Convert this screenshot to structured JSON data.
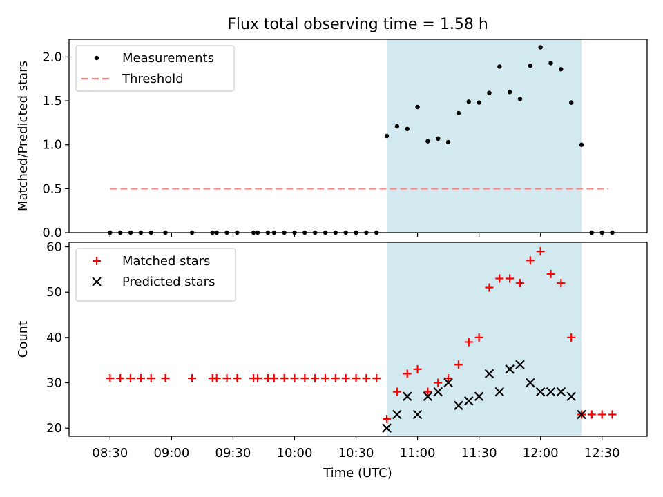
{
  "title": "Flux total observing time = 1.58 h",
  "xlabel": "Time (UTC)",
  "x_ticks": [
    "08:30",
    "09:00",
    "09:30",
    "10:00",
    "10:30",
    "11:00",
    "11:30",
    "12:00",
    "12:30"
  ],
  "chart_data": [
    {
      "type": "scatter",
      "ylabel": "Matched/Predicted stars",
      "ylim": [
        0,
        2.2
      ],
      "y_ticks": [
        "0.0",
        "0.5",
        "1.0",
        "1.5",
        "2.0"
      ],
      "legend_placement": "upper-left",
      "highlight_span": {
        "start": "10:45",
        "end": "12:20",
        "color": "#d3e9f0"
      },
      "series": [
        {
          "name": "Measurements",
          "marker": "dot",
          "color": "#000000",
          "points": [
            [
              "08:30",
              0
            ],
            [
              "08:35",
              0
            ],
            [
              "08:40",
              0
            ],
            [
              "08:45",
              0
            ],
            [
              "08:50",
              0
            ],
            [
              "08:57",
              0
            ],
            [
              "09:10",
              0
            ],
            [
              "09:20",
              0
            ],
            [
              "09:22",
              0
            ],
            [
              "09:27",
              0
            ],
            [
              "09:32",
              0
            ],
            [
              "09:40",
              0
            ],
            [
              "09:42",
              0
            ],
            [
              "09:47",
              0
            ],
            [
              "09:50",
              0
            ],
            [
              "09:55",
              0
            ],
            [
              "10:00",
              0
            ],
            [
              "10:05",
              0
            ],
            [
              "10:10",
              0
            ],
            [
              "10:15",
              0
            ],
            [
              "10:20",
              0
            ],
            [
              "10:25",
              0
            ],
            [
              "10:30",
              0
            ],
            [
              "10:35",
              0
            ],
            [
              "10:40",
              0
            ],
            [
              "10:45",
              1.1
            ],
            [
              "10:50",
              1.21
            ],
            [
              "10:55",
              1.18
            ],
            [
              "11:00",
              1.43
            ],
            [
              "11:05",
              1.04
            ],
            [
              "11:10",
              1.07
            ],
            [
              "11:15",
              1.03
            ],
            [
              "11:20",
              1.36
            ],
            [
              "11:25",
              1.49
            ],
            [
              "11:30",
              1.48
            ],
            [
              "11:35",
              1.59
            ],
            [
              "11:40",
              1.89
            ],
            [
              "11:45",
              1.6
            ],
            [
              "11:50",
              1.52
            ],
            [
              "11:55",
              1.9
            ],
            [
              "12:00",
              2.11
            ],
            [
              "12:05",
              1.93
            ],
            [
              "12:10",
              1.86
            ],
            [
              "12:15",
              1.48
            ],
            [
              "12:20",
              1.0
            ],
            [
              "12:25",
              0
            ],
            [
              "12:30",
              0
            ],
            [
              "12:35",
              0
            ]
          ]
        },
        {
          "name": "Threshold",
          "marker": "dashed-line",
          "color": "#ff7f7f",
          "points": [
            [
              "08:30",
              0.5
            ],
            [
              "12:33",
              0.5
            ]
          ]
        }
      ]
    },
    {
      "type": "scatter",
      "ylabel": "Count",
      "ylim": [
        18.2,
        61
      ],
      "y_ticks": [
        "20",
        "30",
        "40",
        "50",
        "60"
      ],
      "legend_placement": "upper-left",
      "highlight_span": {
        "start": "10:45",
        "end": "12:20",
        "color": "#d3e9f0"
      },
      "series": [
        {
          "name": "Matched stars",
          "marker": "plus",
          "color": "#ff0000",
          "points": [
            [
              "08:30",
              31
            ],
            [
              "08:35",
              31
            ],
            [
              "08:40",
              31
            ],
            [
              "08:45",
              31
            ],
            [
              "08:50",
              31
            ],
            [
              "08:57",
              31
            ],
            [
              "09:10",
              31
            ],
            [
              "09:20",
              31
            ],
            [
              "09:22",
              31
            ],
            [
              "09:27",
              31
            ],
            [
              "09:32",
              31
            ],
            [
              "09:40",
              31
            ],
            [
              "09:42",
              31
            ],
            [
              "09:47",
              31
            ],
            [
              "09:50",
              31
            ],
            [
              "09:55",
              31
            ],
            [
              "10:00",
              31
            ],
            [
              "10:05",
              31
            ],
            [
              "10:10",
              31
            ],
            [
              "10:15",
              31
            ],
            [
              "10:20",
              31
            ],
            [
              "10:25",
              31
            ],
            [
              "10:30",
              31
            ],
            [
              "10:35",
              31
            ],
            [
              "10:40",
              31
            ],
            [
              "10:45",
              22
            ],
            [
              "10:50",
              28
            ],
            [
              "10:55",
              32
            ],
            [
              "11:00",
              33
            ],
            [
              "11:05",
              28
            ],
            [
              "11:10",
              30
            ],
            [
              "11:15",
              31
            ],
            [
              "11:20",
              34
            ],
            [
              "11:25",
              39
            ],
            [
              "11:30",
              40
            ],
            [
              "11:35",
              51
            ],
            [
              "11:40",
              53
            ],
            [
              "11:45",
              53
            ],
            [
              "11:50",
              52
            ],
            [
              "11:55",
              57
            ],
            [
              "12:00",
              59
            ],
            [
              "12:05",
              54
            ],
            [
              "12:10",
              52
            ],
            [
              "12:15",
              40
            ],
            [
              "12:20",
              23
            ],
            [
              "12:25",
              23
            ],
            [
              "12:30",
              23
            ],
            [
              "12:35",
              23
            ]
          ]
        },
        {
          "name": "Predicted stars",
          "marker": "x",
          "color": "#000000",
          "points": [
            [
              "10:45",
              20
            ],
            [
              "10:50",
              23
            ],
            [
              "10:55",
              27
            ],
            [
              "11:00",
              23
            ],
            [
              "11:05",
              27
            ],
            [
              "11:10",
              28
            ],
            [
              "11:15",
              30
            ],
            [
              "11:20",
              25
            ],
            [
              "11:25",
              26
            ],
            [
              "11:30",
              27
            ],
            [
              "11:35",
              32
            ],
            [
              "11:40",
              28
            ],
            [
              "11:45",
              33
            ],
            [
              "11:50",
              34
            ],
            [
              "11:55",
              30
            ],
            [
              "12:00",
              28
            ],
            [
              "12:05",
              28
            ],
            [
              "12:10",
              28
            ],
            [
              "12:15",
              27
            ],
            [
              "12:20",
              23
            ]
          ]
        }
      ]
    }
  ]
}
